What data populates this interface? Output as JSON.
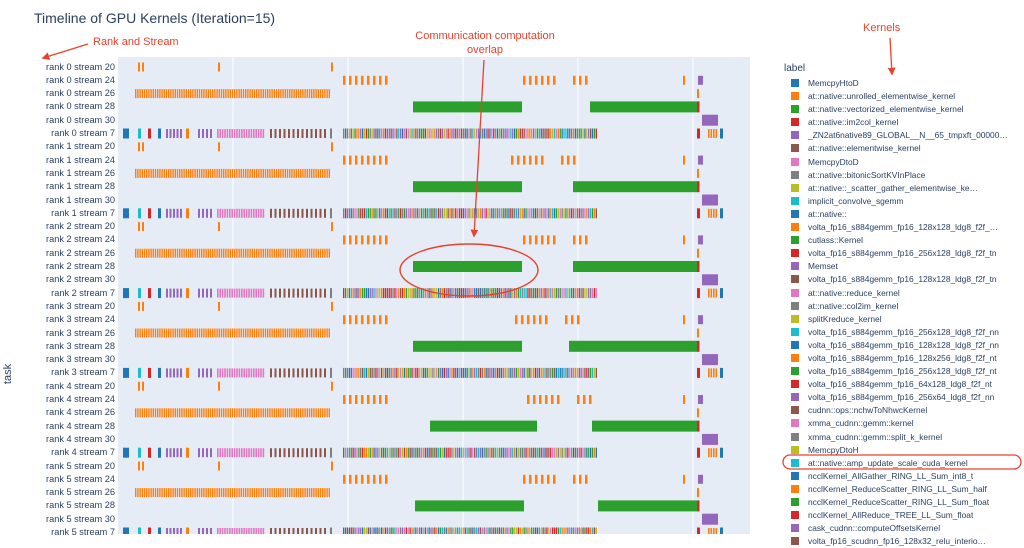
{
  "chart_data": {
    "type": "timeline",
    "title": "Timeline of GPU Kernels (Iteration=15)",
    "ylabel": "task",
    "legend_title": "label",
    "legend_position": "right",
    "grid": true,
    "tasks": [
      "rank 0 stream 20",
      "rank 0 stream 24",
      "rank 0 stream 26",
      "rank 0 stream 28",
      "rank 0 stream 30",
      "rank 0 stream 7",
      "rank 1 stream 20",
      "rank 1 stream 24",
      "rank 1 stream 26",
      "rank 1 stream 28",
      "rank 1 stream 30",
      "rank 1 stream 7",
      "rank 2 stream 20",
      "rank 2 stream 24",
      "rank 2 stream 26",
      "rank 2 stream 28",
      "rank 2 stream 30",
      "rank 2 stream 7",
      "rank 3 stream 20",
      "rank 3 stream 24",
      "rank 3 stream 26",
      "rank 3 stream 28",
      "rank 3 stream 30",
      "rank 3 stream 7",
      "rank 4 stream 20",
      "rank 4 stream 24",
      "rank 4 stream 26",
      "rank 4 stream 28",
      "rank 4 stream 30",
      "rank 4 stream 7",
      "rank 5 stream 20",
      "rank 5 stream 24",
      "rank 5 stream 26",
      "rank 5 stream 28",
      "rank 5 stream 30",
      "rank 5 stream 7"
    ],
    "legend": [
      {
        "label": "MemcpyHtoD",
        "color": "#1f77b4"
      },
      {
        "label": "at::native::unrolled_elementwise_kernel",
        "color": "#ff7f0e"
      },
      {
        "label": "at::native::vectorized_elementwise_kernel",
        "color": "#2ca02c"
      },
      {
        "label": "at::native::im2col_kernel",
        "color": "#d62728"
      },
      {
        "label": "_ZN2at6native89_GLOBAL__N__65_tmpxft_00000…",
        "color": "#9467bd"
      },
      {
        "label": "at::native::elementwise_kernel",
        "color": "#8c564b"
      },
      {
        "label": "MemcpyDtoD",
        "color": "#e377c2"
      },
      {
        "label": "at::native::bitonicSortKVInPlace",
        "color": "#7f7f7f"
      },
      {
        "label": "at::native::_scatter_gather_elementwise_ke…",
        "color": "#bcbd22"
      },
      {
        "label": "implicit_convolve_sgemm",
        "color": "#17becf"
      },
      {
        "label": "at::native::",
        "color": "#1f77b4"
      },
      {
        "label": "volta_fp16_s884gemm_fp16_128x128_ldg8_f2f_…",
        "color": "#ff7f0e"
      },
      {
        "label": "cutlass::Kernel",
        "color": "#2ca02c"
      },
      {
        "label": "volta_fp16_s884gemm_fp16_256x128_ldg8_f2f_tn",
        "color": "#d62728"
      },
      {
        "label": "Memset",
        "color": "#9467bd"
      },
      {
        "label": "volta_fp16_s884gemm_fp16_128x128_ldg8_f2f_tn",
        "color": "#8c564b"
      },
      {
        "label": "at::native::reduce_kernel",
        "color": "#e377c2"
      },
      {
        "label": "at::native::col2im_kernel",
        "color": "#7f7f7f"
      },
      {
        "label": "splitKreduce_kernel",
        "color": "#bcbd22"
      },
      {
        "label": "volta_fp16_s884gemm_fp16_256x128_ldg8_f2f_nn",
        "color": "#17becf"
      },
      {
        "label": "volta_fp16_s884gemm_fp16_128x128_ldg8_f2f_nn",
        "color": "#1f77b4"
      },
      {
        "label": "volta_fp16_s884gemm_fp16_128x256_ldg8_f2f_nt",
        "color": "#ff7f0e"
      },
      {
        "label": "volta_fp16_s884gemm_fp16_256x128_ldg8_f2f_nt",
        "color": "#2ca02c"
      },
      {
        "label": "volta_fp16_s884gemm_fp16_64x128_ldg8_f2f_nt",
        "color": "#d62728"
      },
      {
        "label": "volta_fp16_s884gemm_fp16_256x64_ldg8_f2f_nn",
        "color": "#9467bd"
      },
      {
        "label": "cudnn::ops::nchwToNhwcKernel",
        "color": "#8c564b"
      },
      {
        "label": "xmma_cudnn::gemm::kernel",
        "color": "#e377c2"
      },
      {
        "label": "xmma_cudnn::gemm::split_k_kernel",
        "color": "#7f7f7f"
      },
      {
        "label": "MemcpyDtoH",
        "color": "#bcbd22"
      },
      {
        "label": "at::native::amp_update_scale_cuda_kernel",
        "color": "#17becf"
      },
      {
        "label": "ncclKernel_AllGather_RING_LL_Sum_int8_t",
        "color": "#1f77b4"
      },
      {
        "label": "ncclKernel_ReduceScatter_RING_LL_Sum_half",
        "color": "#ff7f0e"
      },
      {
        "label": "ncclKernel_ReduceScatter_RING_LL_Sum_float",
        "color": "#2ca02c"
      },
      {
        "label": "ncclKernel_AllReduce_TREE_LL_Sum_float",
        "color": "#d62728"
      },
      {
        "label": "cask_cudnn::computeOffsetsKernel",
        "color": "#9467bd"
      },
      {
        "label": "volta_fp16_scudnn_fp16_128x32_relu_interio…",
        "color": "#8c564b"
      }
    ],
    "annotations": [
      {
        "text": "Rank and Stream"
      },
      {
        "text": "Communication computation overlap"
      },
      {
        "text": "Kernels"
      }
    ]
  }
}
